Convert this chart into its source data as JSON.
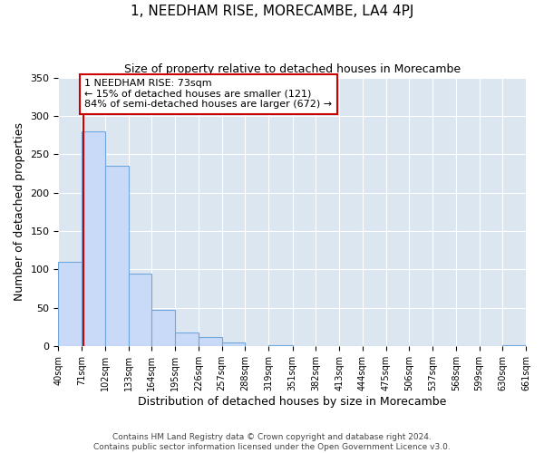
{
  "title": "1, NEEDHAM RISE, MORECAMBE, LA4 4PJ",
  "subtitle": "Size of property relative to detached houses in Morecambe",
  "xlabel": "Distribution of detached houses by size in Morecambe",
  "ylabel": "Number of detached properties",
  "bin_edges": [
    40,
    71,
    102,
    133,
    164,
    195,
    226,
    257,
    288,
    319,
    351,
    382,
    413,
    444,
    475,
    506,
    537,
    568,
    599,
    630,
    661
  ],
  "bar_heights": [
    110,
    280,
    235,
    95,
    48,
    18,
    12,
    5,
    0,
    2,
    0,
    0,
    0,
    0,
    0,
    0,
    0,
    0,
    0,
    2
  ],
  "bar_color": "#c9daf8",
  "bar_edge_color": "#6fa8dc",
  "red_line_x": 73,
  "red_line_color": "#cc0000",
  "annotation_text": "1 NEEDHAM RISE: 73sqm\n← 15% of detached houses are smaller (121)\n84% of semi-detached houses are larger (672) →",
  "annotation_box_color": "#ffffff",
  "annotation_box_edge_color": "#cc0000",
  "ylim": [
    0,
    350
  ],
  "tick_labels": [
    "40sqm",
    "71sqm",
    "102sqm",
    "133sqm",
    "164sqm",
    "195sqm",
    "226sqm",
    "257sqm",
    "288sqm",
    "319sqm",
    "351sqm",
    "382sqm",
    "413sqm",
    "444sqm",
    "475sqm",
    "506sqm",
    "537sqm",
    "568sqm",
    "599sqm",
    "630sqm",
    "661sqm"
  ],
  "footer_line1": "Contains HM Land Registry data © Crown copyright and database right 2024.",
  "footer_line2": "Contains public sector information licensed under the Open Government Licence v3.0.",
  "background_color": "#ffffff",
  "grid_color": "#ffffff",
  "plot_bg_color": "#dce6f1",
  "title_fontsize": 11,
  "subtitle_fontsize": 9,
  "xlabel_fontsize": 9,
  "ylabel_fontsize": 9,
  "tick_fontsize": 7,
  "footer_fontsize": 6.5
}
